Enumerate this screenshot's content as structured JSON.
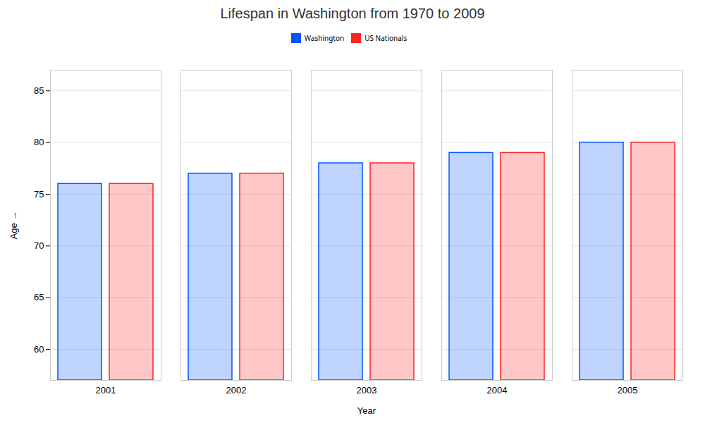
{
  "chart_data": {
    "type": "bar",
    "title": "Lifespan in Washington from 1970 to 2009",
    "xlabel": "Year",
    "ylabel": "Age",
    "categories": [
      "2001",
      "2002",
      "2003",
      "2004",
      "2005"
    ],
    "series": [
      {
        "name": "Washington",
        "color": "#0055ff",
        "values": [
          76,
          77,
          78,
          79,
          80
        ]
      },
      {
        "name": "US Nationals",
        "color": "#ff2222",
        "values": [
          76,
          77,
          78,
          79,
          80
        ]
      }
    ],
    "ylim": [
      57,
      87
    ],
    "yticks": [
      60,
      65,
      70,
      75,
      80,
      85
    ],
    "grid": true,
    "legend": "top"
  }
}
